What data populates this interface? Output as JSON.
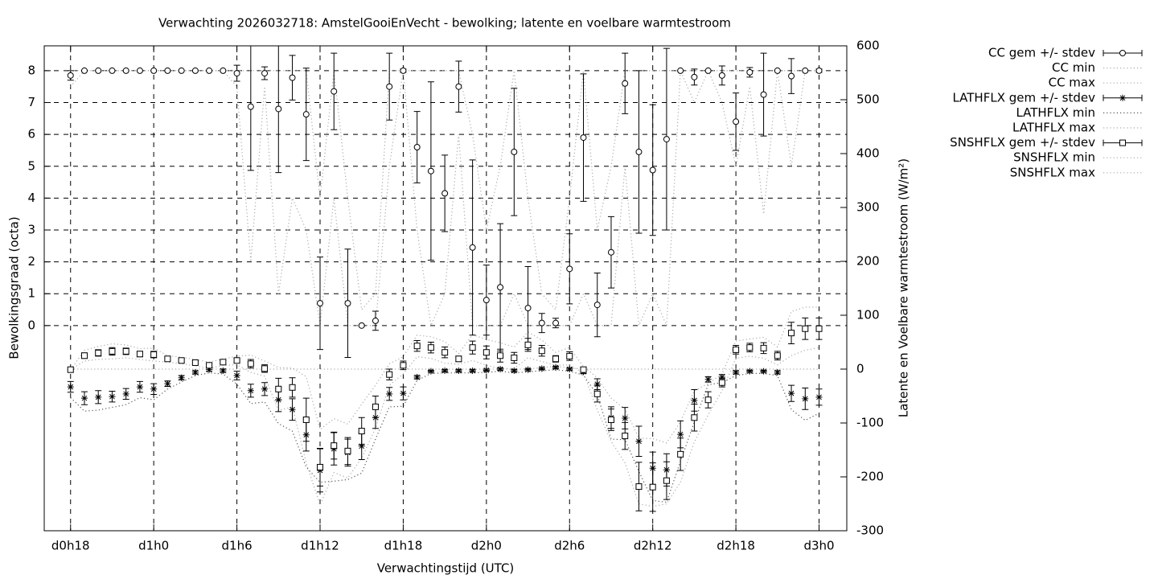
{
  "chart_data": {
    "type": "errorbar",
    "title": "Verwachting 2026032718: AmstelGooiEnVecht - bewolking; latente en voelbare warmtestroom",
    "xlabel": "Verwachtingstijd (UTC)",
    "ylabel": "Bewolkingsgraad (octa)",
    "y2label": "Latente en Voelbare warmtestroom (W/m²)",
    "x": [
      18,
      19,
      20,
      21,
      22,
      23,
      24,
      25,
      26,
      27,
      28,
      29,
      30,
      31,
      32,
      33,
      34,
      35,
      36,
      37,
      38,
      39,
      40,
      41,
      42,
      43,
      44,
      45,
      46,
      47,
      48,
      49,
      50,
      51,
      52,
      53,
      54,
      55,
      56,
      57,
      58,
      59,
      60,
      61,
      62,
      63,
      64,
      65,
      66,
      67,
      68,
      69,
      70,
      71,
      72
    ],
    "xlim": [
      16.1,
      74
    ],
    "xticks": [
      {
        "value": 18,
        "label": "d0h18"
      },
      {
        "value": 24,
        "label": "d1h0"
      },
      {
        "value": 30,
        "label": "d1h6"
      },
      {
        "value": 36,
        "label": "d1h12"
      },
      {
        "value": 42,
        "label": "d1h18"
      },
      {
        "value": 48,
        "label": "d2h0"
      },
      {
        "value": 54,
        "label": "d2h6"
      },
      {
        "value": 60,
        "label": "d2h12"
      },
      {
        "value": 66,
        "label": "d2h18"
      },
      {
        "value": 72,
        "label": "d3h0"
      }
    ],
    "ylim": [
      -6.44,
      8.78
    ],
    "yticks": [
      0,
      1,
      2,
      3,
      4,
      5,
      6,
      7,
      8
    ],
    "y2lim": [
      -300,
      600
    ],
    "y2ticks": [
      -300,
      -200,
      -100,
      0,
      100,
      200,
      300,
      400,
      500,
      600
    ],
    "grid": true,
    "legend": "outside-top-right",
    "series": [
      {
        "name": "CC gem +/- stdev",
        "style": "errorbar",
        "marker": "circle",
        "color": "#000000",
        "values": [
          7.85,
          8,
          8,
          8,
          8,
          8,
          8,
          8,
          8,
          8,
          8,
          8,
          7.92,
          6.87,
          7.92,
          6.8,
          7.78,
          6.63,
          0.7,
          7.35,
          0.7,
          0,
          0.15,
          7.5,
          8,
          5.6,
          4.85,
          4.15,
          7.5,
          2.45,
          0.8,
          1.2,
          5.45,
          0.55,
          0.08,
          0.08,
          1.78,
          5.9,
          0.65,
          2.3,
          7.6,
          5.45,
          4.88,
          5.85,
          8,
          7.8,
          8,
          7.85,
          6.4,
          7.95,
          7.25,
          8,
          7.83,
          8,
          8
        ],
        "errors": [
          0.15,
          0,
          0,
          0,
          0,
          0,
          0,
          0,
          0,
          0,
          0,
          0,
          0.25,
          2.0,
          0.2,
          2.0,
          0.7,
          1.45,
          1.45,
          1.2,
          1.7,
          0,
          0.3,
          1.05,
          0.05,
          1.12,
          2.8,
          1.2,
          0.8,
          2.75,
          1.1,
          2.0,
          2.0,
          1.3,
          0.3,
          0.15,
          1.1,
          2.0,
          1.0,
          1.12,
          0.95,
          2.55,
          2.05,
          2.85,
          0,
          0.25,
          0,
          0.3,
          0.9,
          0.15,
          1.3,
          0,
          0.55,
          0,
          0.05
        ]
      },
      {
        "name": "CC min",
        "style": "dotted",
        "color": "#aaaaaa",
        "values": [
          7.5,
          8,
          8,
          8,
          8,
          8,
          8,
          8,
          8,
          8,
          8,
          8,
          7.5,
          2,
          7.5,
          1,
          4,
          3,
          0,
          4,
          0,
          0,
          0,
          5,
          8,
          3,
          0,
          1,
          6,
          0,
          0,
          0,
          1,
          0,
          0,
          0,
          0,
          1,
          0,
          0,
          5,
          0,
          1,
          0,
          8,
          7,
          8,
          7,
          5,
          7.5,
          3.5,
          8,
          5,
          8,
          8
        ]
      },
      {
        "name": "CC max",
        "style": "dotted",
        "color": "#aaaaaa",
        "values": [
          8,
          8,
          8,
          8,
          8,
          8,
          8,
          8,
          8,
          8,
          8,
          8,
          8,
          8,
          8,
          8,
          8,
          8,
          4,
          8,
          4,
          0.5,
          1,
          8,
          8,
          8,
          8,
          8,
          8,
          6,
          3,
          5,
          8,
          4,
          1,
          0.5,
          4,
          8,
          3,
          5,
          8,
          8,
          8,
          8,
          8,
          8,
          8,
          8,
          8,
          8,
          8,
          8,
          8,
          8,
          8
        ]
      },
      {
        "name": "LATHFLX gem +/- stdev",
        "style": "errorbar",
        "marker": "star",
        "color": "#000000",
        "axis": "y2",
        "values": [
          -33,
          -54,
          -52,
          -51,
          -46,
          -33,
          -37,
          -27,
          -16,
          -6,
          -1,
          -3,
          -12,
          -40,
          -37,
          -57,
          -75,
          -122,
          -188,
          -148,
          -155,
          -143,
          -90,
          -46,
          -45,
          -15,
          -4,
          -3,
          -3,
          -3,
          -2,
          0,
          -3,
          -1,
          1,
          3,
          0,
          -5,
          -28,
          -90,
          -91,
          -134,
          -184,
          -187,
          -121,
          -58,
          -19,
          -15,
          -6,
          -4,
          -4,
          -6,
          -45,
          -55,
          -52
        ],
        "errors": [
          10,
          12,
          12,
          10,
          10,
          10,
          10,
          5,
          4,
          3,
          3,
          3,
          8,
          12,
          12,
          22,
          20,
          30,
          40,
          30,
          25,
          25,
          20,
          12,
          12,
          3,
          2,
          2,
          2,
          2,
          2,
          2,
          2,
          2,
          2,
          2,
          2,
          3,
          10,
          20,
          20,
          28,
          30,
          30,
          25,
          20,
          5,
          5,
          3,
          2,
          2,
          3,
          15,
          20,
          15
        ]
      },
      {
        "name": "LATHFLX min",
        "style": "dotted",
        "color": "#555555",
        "axis": "y2",
        "values": [
          -53,
          -78,
          -76,
          -71,
          -66,
          -53,
          -57,
          -37,
          -24,
          -12,
          -7,
          -9,
          -28,
          -64,
          -61,
          -101,
          -115,
          -182,
          -210,
          -208,
          -205,
          -193,
          -130,
          -70,
          -69,
          -21,
          -8,
          -7,
          -7,
          -7,
          -6,
          -4,
          -7,
          -5,
          -3,
          -1,
          -4,
          -11,
          -48,
          -130,
          -131,
          -190,
          -244,
          -247,
          -171,
          -98,
          -29,
          -25,
          -12,
          -8,
          -8,
          -12,
          -75,
          -95,
          -82
        ]
      },
      {
        "name": "LATHFLX max",
        "style": "dotted",
        "color": "#aaaaaa",
        "axis": "y2",
        "values": [
          0,
          0,
          0,
          0,
          0,
          0,
          0,
          0,
          0,
          0,
          0,
          0,
          0,
          0,
          0,
          0,
          0,
          0,
          0,
          0,
          0,
          0,
          0,
          0,
          0,
          0,
          0,
          0,
          0,
          0,
          0,
          0,
          0,
          0,
          3,
          5,
          2,
          0,
          0,
          0,
          0,
          0,
          0,
          0,
          0,
          0,
          0,
          0,
          0,
          0,
          0,
          0,
          0,
          0,
          0
        ]
      },
      {
        "name": "SNSHFLX gem +/- stdev",
        "style": "errorbar",
        "marker": "square",
        "color": "#000000",
        "axis": "y2",
        "values": [
          -1,
          25,
          30,
          33,
          33,
          28,
          27,
          19,
          16,
          12,
          7,
          13,
          16,
          10,
          1,
          -37,
          -34,
          -94,
          -182,
          -142,
          -152,
          -115,
          -70,
          -10,
          7,
          43,
          40,
          31,
          19,
          40,
          31,
          25,
          21,
          45,
          34,
          19,
          24,
          -1,
          -46,
          -94,
          -124,
          -218,
          -219,
          -207,
          -158,
          -90,
          -57,
          -25,
          36,
          40,
          39,
          25,
          67,
          75,
          75
        ],
        "errors": [
          0,
          5,
          6,
          7,
          6,
          5,
          6,
          3,
          3,
          3,
          3,
          3,
          4,
          8,
          7,
          20,
          18,
          40,
          35,
          25,
          25,
          25,
          20,
          10,
          8,
          10,
          10,
          10,
          5,
          12,
          12,
          12,
          10,
          12,
          10,
          6,
          8,
          3,
          15,
          20,
          25,
          45,
          45,
          35,
          30,
          25,
          15,
          8,
          8,
          8,
          10,
          8,
          20,
          20,
          20
        ]
      },
      {
        "name": "SNSHFLX min",
        "style": "dotted",
        "color": "#aaaaaa",
        "axis": "y2",
        "values": [
          -1,
          15,
          18,
          19,
          21,
          18,
          15,
          13,
          10,
          6,
          1,
          7,
          8,
          -6,
          -13,
          -77,
          -70,
          -174,
          -252,
          -192,
          -202,
          -165,
          -110,
          -30,
          -9,
          23,
          20,
          11,
          9,
          16,
          7,
          1,
          1,
          21,
          14,
          7,
          8,
          -7,
          -76,
          -134,
          -174,
          -250,
          -255,
          -250,
          -210,
          -135,
          -85,
          -40,
          20,
          24,
          20,
          8,
          25,
          35,
          40
        ]
      },
      {
        "name": "SNSHFLX max",
        "style": "dotted",
        "color": "#aaaaaa",
        "axis": "y2",
        "values": [
          -1,
          35,
          42,
          47,
          45,
          38,
          39,
          25,
          22,
          18,
          13,
          19,
          24,
          26,
          15,
          3,
          2,
          -14,
          -112,
          -92,
          -102,
          -65,
          -30,
          10,
          23,
          63,
          60,
          51,
          29,
          64,
          55,
          49,
          41,
          69,
          54,
          31,
          40,
          5,
          -16,
          -54,
          -74,
          -128,
          -129,
          -137,
          -98,
          -40,
          -27,
          -9,
          52,
          56,
          59,
          41,
          107,
          115,
          115
        ]
      }
    ]
  }
}
